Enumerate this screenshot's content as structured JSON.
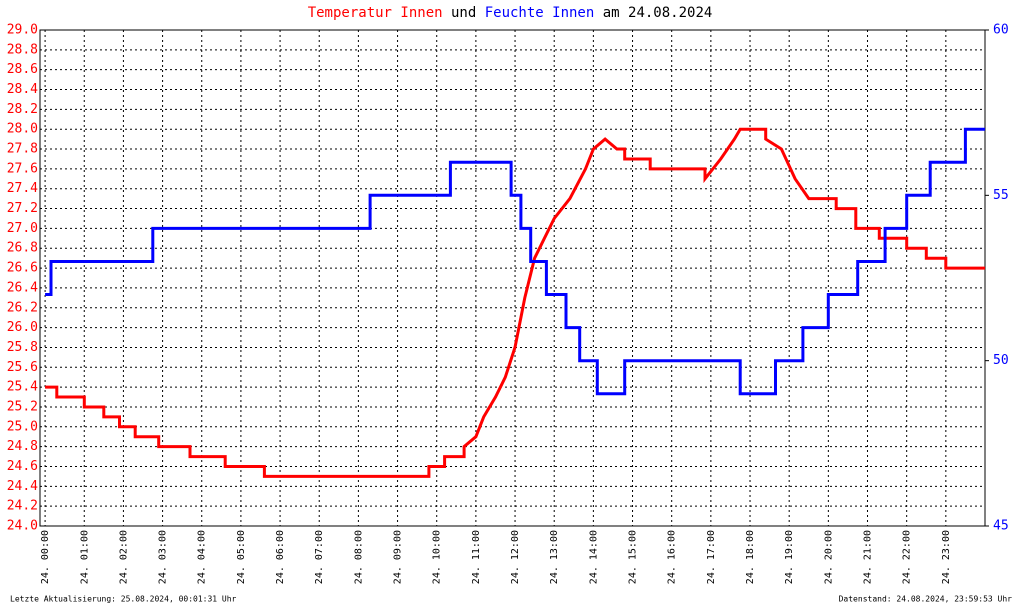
{
  "chart_data": {
    "type": "line",
    "title_connector": "und",
    "title_suffix": "am 24.08.2024",
    "footer_left": "Letzte Aktualisierung: 25.08.2024, 00:01:31 Uhr",
    "footer_right": "Datenstand: 24.08.2024, 23:59:53 Uhr",
    "grid": true,
    "background": "#ffffff",
    "xlim": [
      -0.13,
      24
    ],
    "xticks": [
      {
        "value": 0,
        "label": "24. 00:00"
      },
      {
        "value": 1,
        "label": "24. 01:00"
      },
      {
        "value": 2,
        "label": "24. 02:00"
      },
      {
        "value": 3,
        "label": "24. 03:00"
      },
      {
        "value": 4,
        "label": "24. 04:00"
      },
      {
        "value": 5,
        "label": "24. 05:00"
      },
      {
        "value": 6,
        "label": "24. 06:00"
      },
      {
        "value": 7,
        "label": "24. 07:00"
      },
      {
        "value": 8,
        "label": "24. 08:00"
      },
      {
        "value": 9,
        "label": "24. 09:00"
      },
      {
        "value": 10,
        "label": "24. 10:00"
      },
      {
        "value": 11,
        "label": "24. 11:00"
      },
      {
        "value": 12,
        "label": "24. 12:00"
      },
      {
        "value": 13,
        "label": "24. 13:00"
      },
      {
        "value": 14,
        "label": "24. 14:00"
      },
      {
        "value": 15,
        "label": "24. 15:00"
      },
      {
        "value": 16,
        "label": "24. 16:00"
      },
      {
        "value": 17,
        "label": "24. 17:00"
      },
      {
        "value": 18,
        "label": "24. 18:00"
      },
      {
        "value": 19,
        "label": "24. 19:00"
      },
      {
        "value": 20,
        "label": "24. 20:00"
      },
      {
        "value": 21,
        "label": "24. 21:00"
      },
      {
        "value": 22,
        "label": "24. 22:00"
      },
      {
        "value": 23,
        "label": "24. 23:00"
      }
    ],
    "ylim": [
      24,
      29
    ],
    "yticks": [
      {
        "value": 24,
        "label": "24.0"
      },
      24.2,
      24.4,
      24.6,
      24.8,
      {
        "value": 25,
        "label": "25.0"
      },
      25.2,
      25.4,
      25.6,
      25.8,
      {
        "value": 26,
        "label": "26.0"
      },
      26.2,
      26.4,
      26.6,
      26.8,
      {
        "value": 27,
        "label": "27.0"
      },
      27.2,
      27.4,
      27.6,
      27.8,
      {
        "value": 28,
        "label": "28.0"
      },
      28.2,
      28.4,
      28.6,
      28.8,
      {
        "value": 29,
        "label": "29.0"
      }
    ],
    "y2lim": [
      45,
      60
    ],
    "y2ticks": [
      45,
      50,
      55,
      60
    ],
    "series": [
      {
        "name": "Temperatur Innen",
        "color": "#ff0000",
        "x": [
          0,
          0.3,
          0.3,
          1.0,
          1.0,
          1.5,
          1.5,
          1.9,
          1.9,
          2.3,
          2.3,
          2.9,
          2.9,
          3.7,
          3.7,
          4.6,
          4.6,
          5.6,
          5.6,
          9.8,
          9.8,
          10.2,
          10.2,
          10.7,
          10.7,
          11.0,
          11.2,
          11.5,
          11.75,
          12.0,
          12.25,
          12.5,
          12.75,
          13.0,
          13.4,
          13.8,
          14.0,
          14.3,
          14.6,
          14.8,
          14.8,
          15.45,
          15.45,
          16.85,
          16.85,
          17.25,
          17.6,
          17.75,
          18.4,
          18.4,
          18.8,
          19.15,
          19.5,
          20.2,
          20.2,
          20.7,
          20.7,
          21.3,
          21.3,
          22.0,
          22.0,
          22.5,
          22.5,
          23.0,
          23.0,
          24
        ],
        "values": [
          25.4,
          25.4,
          25.3,
          25.3,
          25.2,
          25.2,
          25.1,
          25.1,
          25.0,
          25.0,
          24.9,
          24.9,
          24.8,
          24.8,
          24.7,
          24.7,
          24.6,
          24.6,
          24.5,
          24.5,
          24.6,
          24.6,
          24.7,
          24.7,
          24.8,
          24.9,
          25.1,
          25.3,
          25.5,
          25.8,
          26.3,
          26.7,
          26.9,
          27.1,
          27.3,
          27.6,
          27.8,
          27.9,
          27.8,
          27.8,
          27.7,
          27.7,
          27.6,
          27.6,
          27.5,
          27.7,
          27.9,
          28.0,
          28.0,
          27.9,
          27.8,
          27.5,
          27.3,
          27.3,
          27.2,
          27.2,
          27.0,
          27.0,
          26.9,
          26.9,
          26.8,
          26.8,
          26.7,
          26.7,
          26.6,
          26.6
        ]
      },
      {
        "name": "Feuchte Innen",
        "color": "#0000ff",
        "axis": "y2",
        "x": [
          0,
          0.15,
          0.15,
          2.75,
          2.75,
          8.3,
          8.3,
          10.35,
          10.35,
          11.9,
          11.9,
          12.15,
          12.15,
          12.4,
          12.4,
          12.8,
          12.8,
          13.3,
          13.3,
          13.65,
          13.65,
          14.1,
          14.1,
          14.8,
          14.8,
          17.75,
          17.75,
          18.65,
          18.65,
          19.35,
          19.35,
          20.0,
          20.0,
          20.75,
          20.75,
          21.45,
          21.45,
          22.0,
          22.0,
          22.6,
          22.6,
          23.5,
          23.5,
          24
        ],
        "values": [
          52,
          52,
          53,
          53,
          54,
          54,
          55,
          55,
          56,
          56,
          55,
          55,
          54,
          54,
          53,
          53,
          52,
          52,
          51,
          51,
          50,
          50,
          49,
          49,
          50,
          50,
          49,
          49,
          50,
          50,
          51,
          51,
          52,
          52,
          53,
          53,
          54,
          54,
          55,
          55,
          56,
          56,
          57,
          57
        ]
      }
    ]
  }
}
